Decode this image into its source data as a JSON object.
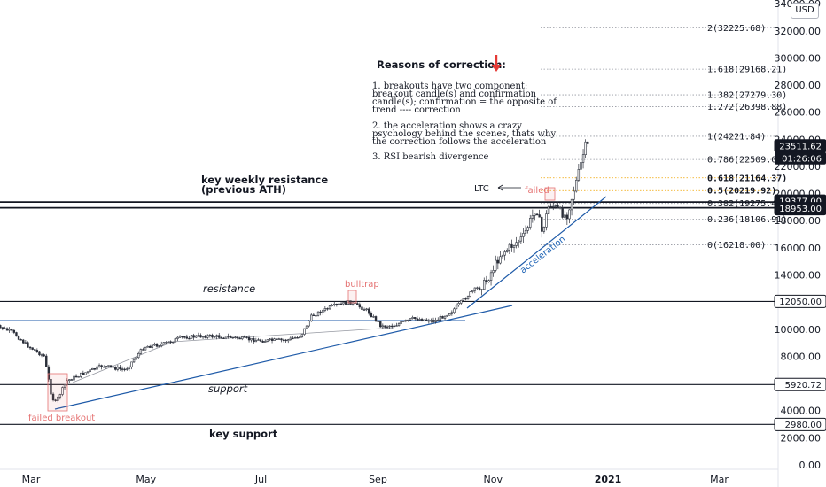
{
  "currency": "USD",
  "colors": {
    "candle": "#2a2e39",
    "trend": "#1e5aa8",
    "fib_gold": "#f0a500",
    "arrow_red": "#e53935",
    "annotation_red": "#e57373",
    "dark_label": "#131722",
    "accel_text": "#1e63b5"
  },
  "chart_data": {
    "type": "candlestick",
    "y_axis": {
      "ticks": [
        "34000.00",
        "32000.00",
        "30000.00",
        "28000.00",
        "26000.00",
        "24000.00",
        "22000.00",
        "20000.00",
        "18000.00",
        "16000.00",
        "14000.00",
        "12000.00",
        "10000.00",
        "8000.00",
        "6000.00",
        "4000.00",
        "2000.00",
        "0.00"
      ],
      "ylim": [
        -500,
        34500
      ]
    },
    "x_axis": {
      "ticks": [
        {
          "label": "Mar",
          "date": "2020-03-01",
          "bold": false
        },
        {
          "label": "May",
          "date": "2020-05-01",
          "bold": false
        },
        {
          "label": "Jul",
          "date": "2020-07-01",
          "bold": false
        },
        {
          "label": "Sep",
          "date": "2020-09-01",
          "bold": false
        },
        {
          "label": "Nov",
          "date": "2020-11-01",
          "bold": false
        },
        {
          "label": "2021",
          "date": "2021-01-01",
          "bold": true
        },
        {
          "label": "Mar",
          "date": "2021-03-01",
          "bold": false
        }
      ]
    },
    "price_path": [
      [
        "2020-02-10",
        10300
      ],
      [
        "2020-02-20",
        9800
      ],
      [
        "2020-02-28",
        8800
      ],
      [
        "2020-03-08",
        8000
      ],
      [
        "2020-03-12",
        5000
      ],
      [
        "2020-03-14",
        4600
      ],
      [
        "2020-03-20",
        6200
      ],
      [
        "2020-03-28",
        6700
      ],
      [
        "2020-04-08",
        7300
      ],
      [
        "2020-04-20",
        7000
      ],
      [
        "2020-04-30",
        8700
      ],
      [
        "2020-05-10",
        8900
      ],
      [
        "2020-05-20",
        9400
      ],
      [
        "2020-06-01",
        9500
      ],
      [
        "2020-06-15",
        9400
      ],
      [
        "2020-07-01",
        9150
      ],
      [
        "2020-07-15",
        9200
      ],
      [
        "2020-07-22",
        9500
      ],
      [
        "2020-07-28",
        11000
      ],
      [
        "2020-08-08",
        11700
      ],
      [
        "2020-08-17",
        12000
      ],
      [
        "2020-08-26",
        11400
      ],
      [
        "2020-09-03",
        10200
      ],
      [
        "2020-09-10",
        10300
      ],
      [
        "2020-09-20",
        10800
      ],
      [
        "2020-10-01",
        10600
      ],
      [
        "2020-10-10",
        11300
      ],
      [
        "2020-10-21",
        12800
      ],
      [
        "2020-10-28",
        13400
      ],
      [
        "2020-11-05",
        15500
      ],
      [
        "2020-11-17",
        16800
      ],
      [
        "2020-11-24",
        19000
      ],
      [
        "2020-11-27",
        17100
      ],
      [
        "2020-12-01",
        19300
      ],
      [
        "2020-12-10",
        18300
      ],
      [
        "2020-12-16",
        21300
      ],
      [
        "2020-12-20",
        23500
      ],
      [
        "2020-12-22",
        23511.62
      ]
    ],
    "horizontal_levels": [
      {
        "value": 19377.0,
        "label": "19377.00",
        "style": "dark"
      },
      {
        "value": 18953.0,
        "label": "18953.00",
        "style": "dark"
      },
      {
        "value": 12050.0,
        "label": "12050.00",
        "style": "boxed"
      },
      {
        "value": 5920.72,
        "label": "5920.72",
        "style": "boxed"
      },
      {
        "value": 2980.0,
        "label": "2980.00",
        "style": "boxed"
      }
    ],
    "current_price": {
      "value": 23511.62,
      "label": "23511.62",
      "countdown": "01:26:06"
    },
    "fib_levels": [
      {
        "value": 32225.68,
        "text": "2(32225.68)",
        "color": "#131722"
      },
      {
        "value": 29168.21,
        "text": "1.618(29168.21)",
        "color": "#131722"
      },
      {
        "value": 27279.3,
        "text": "1.382(27279.30)",
        "color": "#131722"
      },
      {
        "value": 26398.88,
        "text": "1.272(26398.88)",
        "color": "#131722"
      },
      {
        "value": 24221.84,
        "text": "1(24221.84)",
        "color": "#131722"
      },
      {
        "value": 22509.02,
        "text": "0.786(22509.02)",
        "color": "#131722"
      },
      {
        "value": 21164.37,
        "text": "0.618(21164.37)",
        "color": "#f0a500"
      },
      {
        "value": 20219.92,
        "text": "0.5(20219.92)",
        "color": "#f0a500"
      },
      {
        "value": 19275.47,
        "text": "0.382(19275.47)",
        "color": "#131722"
      },
      {
        "value": 18106.91,
        "text": "0.236(18106.91)",
        "color": "#131722"
      },
      {
        "value": 16218.0,
        "text": "0(16218.00)",
        "color": "#131722"
      }
    ],
    "annotations": {
      "reasons_title": "Reasons of correction:",
      "reason1": [
        "1. breakouts have two component:",
        "breakout candle(s) and confirmation",
        "candle(s); confirmation = the opposite of",
        "trend ---- correction"
      ],
      "reason2": [
        "2. the acceleration shows a crazy",
        "psychology behind the scenes, thats why",
        "the correction follows the acceleration"
      ],
      "reason3": "3. RSI bearish divergence",
      "key_resistance": [
        "key weekly resistance",
        "(previous ATH)"
      ],
      "resistance": "resistance",
      "support": "support",
      "key_support": "key support",
      "bulltrap": "bulltrap",
      "failed": "failed",
      "ltc": "LTC",
      "acceleration": "acceleration",
      "failed_breakout": "failed breakout"
    }
  }
}
